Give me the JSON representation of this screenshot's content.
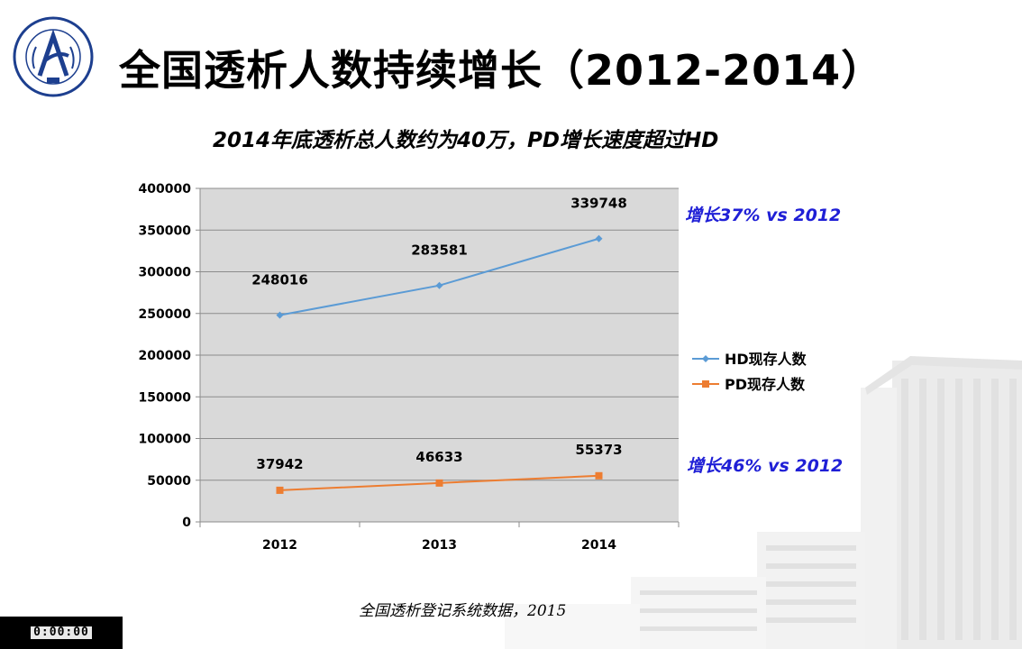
{
  "slide": {
    "title": "全国透析人数持续增长（2012-2014）",
    "subtitle": "2014年底透析总人数约为40万，PD增长速度超过HD",
    "source": "全国透析登记系统数据，2015",
    "timer": "0:00:00",
    "logo_icon": "hospital-seal-icon",
    "background_icon": "hospital-building-icon"
  },
  "annotations": {
    "hd_growth": "增长37% vs 2012",
    "pd_growth": "增长46% vs 2012",
    "color": "#1f1fd6"
  },
  "chart_data": {
    "type": "line",
    "title": "",
    "xlabel": "",
    "ylabel": "",
    "categories": [
      "2012",
      "2013",
      "2014"
    ],
    "yticks": [
      "0",
      "50000",
      "100000",
      "150000",
      "200000",
      "250000",
      "300000",
      "350000",
      "400000"
    ],
    "ylim": [
      0,
      400000
    ],
    "grid": true,
    "legend_position": "right",
    "plot_background": "#d9d9d9",
    "series": [
      {
        "name": "HD现存人数",
        "values": [
          248016,
          283581,
          339748
        ],
        "labels": [
          "248016",
          "283581",
          "339748"
        ],
        "color": "#5b9bd5",
        "marker": "diamond"
      },
      {
        "name": "PD现存人数",
        "values": [
          37942,
          46633,
          55373
        ],
        "labels": [
          "37942",
          "46633",
          "55373"
        ],
        "color": "#ed7d31",
        "marker": "square"
      }
    ]
  }
}
